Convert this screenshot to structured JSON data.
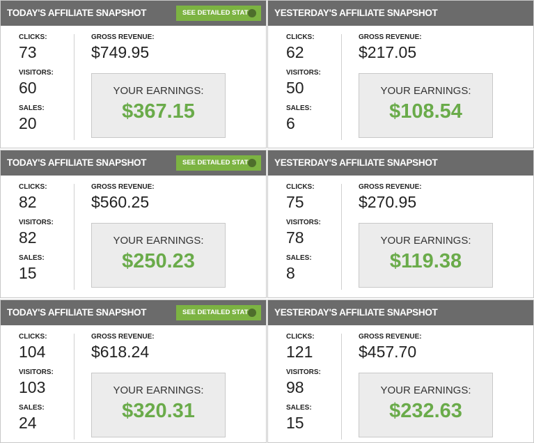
{
  "panels": [
    {
      "title": "TODAY'S AFFILIATE SNAPSHOT",
      "button": "SEE DETAILED STATS",
      "clicks_label": "CLICKS:",
      "clicks": "73",
      "visitors_label": "VISITORS:",
      "visitors": "60",
      "sales_label": "SALES:",
      "sales": "20",
      "gross_label": "GROSS REVENUE:",
      "gross": "$749.95",
      "earnings_label": "YOUR EARNINGS:",
      "earnings": "$367.15"
    },
    {
      "title": "YESTERDAY'S AFFILIATE SNAPSHOT",
      "clicks_label": "CLICKS:",
      "clicks": "62",
      "visitors_label": "VISITORS:",
      "visitors": "50",
      "sales_label": "SALES:",
      "sales": "6",
      "gross_label": "GROSS REVENUE:",
      "gross": "$217.05",
      "earnings_label": "YOUR EARNINGS:",
      "earnings": "$108.54"
    },
    {
      "title": "TODAY'S AFFILIATE SNAPSHOT",
      "button": "SEE DETAILED STATS",
      "clicks_label": "CLICKS:",
      "clicks": "82",
      "visitors_label": "VISITORS:",
      "visitors": "82",
      "sales_label": "SALES:",
      "sales": "15",
      "gross_label": "GROSS REVENUE:",
      "gross": "$560.25",
      "earnings_label": "YOUR EARNINGS:",
      "earnings": "$250.23"
    },
    {
      "title": "YESTERDAY'S AFFILIATE SNAPSHOT",
      "clicks_label": "CLICKS:",
      "clicks": "75",
      "visitors_label": "VISITORS:",
      "visitors": "78",
      "sales_label": "SALES:",
      "sales": "8",
      "gross_label": "GROSS REVENUE:",
      "gross": "$270.95",
      "earnings_label": "YOUR EARNINGS:",
      "earnings": "$119.38"
    },
    {
      "title": "TODAY'S AFFILIATE SNAPSHOT",
      "button": "SEE DETAILED STATS",
      "clicks_label": "CLICKS:",
      "clicks": "104",
      "visitors_label": "VISITORS:",
      "visitors": "103",
      "sales_label": "SALES:",
      "sales": "24",
      "gross_label": "GROSS REVENUE:",
      "gross": "$618.24",
      "earnings_label": "YOUR EARNINGS:",
      "earnings": "$320.31"
    },
    {
      "title": "YESTERDAY'S AFFILIATE SNAPSHOT",
      "clicks_label": "CLICKS:",
      "clicks": "121",
      "visitors_label": "VISITORS:",
      "visitors": "98",
      "sales_label": "SALES:",
      "sales": "15",
      "gross_label": "GROSS REVENUE:",
      "gross": "$457.70",
      "earnings_label": "YOUR EARNINGS:",
      "earnings": "$232.63"
    }
  ]
}
